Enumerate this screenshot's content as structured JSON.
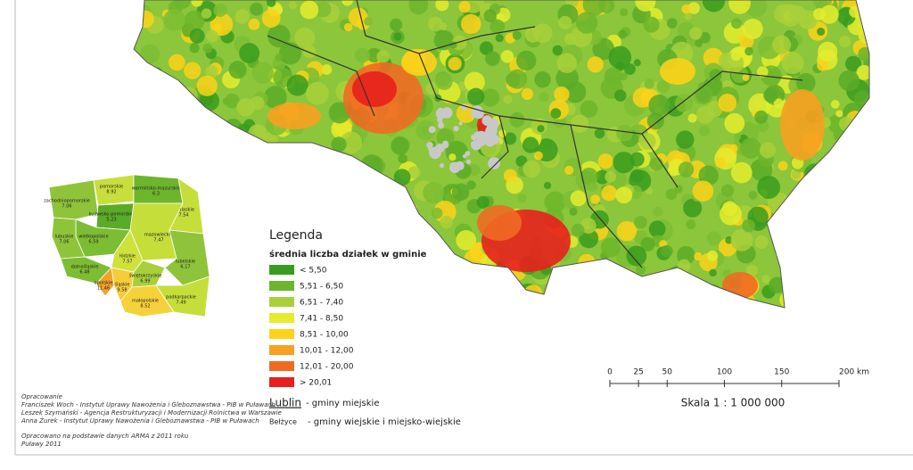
{
  "legend": {
    "title": "Legenda",
    "subtitle": "średnia liczba działek w gminie",
    "items": [
      {
        "label": "< 5,50",
        "color": "#3a9c1f"
      },
      {
        "label": "5,51 - 6,50",
        "color": "#6db52c"
      },
      {
        "label": "6,51 - 7,40",
        "color": "#a8d03a"
      },
      {
        "label": "7,41 - 8,50",
        "color": "#e4ec2e"
      },
      {
        "label": "8,51 - 10,00",
        "color": "#fcd21a"
      },
      {
        "label": "10,01 - 12,00",
        "color": "#f7a021"
      },
      {
        "label": "12,01 - 20,00",
        "color": "#f06a24"
      },
      {
        "label": "> 20,01",
        "color": "#e8201d"
      }
    ]
  },
  "inset": {
    "regions": [
      {
        "name": "zachodniopomorskie",
        "value": 7.06,
        "color": "#8fc43a"
      },
      {
        "name": "pomorskie",
        "value": 8.92,
        "color": "#c8de3c"
      },
      {
        "name": "warmińsko-mazurskie",
        "value": 6.3,
        "color": "#6db52c"
      },
      {
        "name": "podlaskie",
        "value": 7.54,
        "color": "#c5de3a"
      },
      {
        "name": "kujawsko-pomorskie",
        "value": 5.23,
        "color": "#5aab28"
      },
      {
        "name": "wielkopolskie",
        "value": 6.59,
        "color": "#7dbd33"
      },
      {
        "name": "lubuskie",
        "value": 7.06,
        "color": "#8fc43a"
      },
      {
        "name": "mazowieckie",
        "value": 7.47,
        "color": "#c5de3a"
      },
      {
        "name": "łódzkie",
        "value": 7.57,
        "color": "#cfe23c"
      },
      {
        "name": "dolnośląskie",
        "value": 6.48,
        "color": "#7dbd33"
      },
      {
        "name": "opolskie",
        "value": 11.46,
        "color": "#f4a12a"
      },
      {
        "name": "śląskie",
        "value": 9.58,
        "color": "#f6cc3a"
      },
      {
        "name": "świętokrzyskie",
        "value": 6.99,
        "color": "#a8d03a"
      },
      {
        "name": "lubelskie",
        "value": 6.17,
        "color": "#8fc43a"
      },
      {
        "name": "podkarpackie",
        "value": 7.49,
        "color": "#c5de3a"
      },
      {
        "name": "małopolskie",
        "value": 8.52,
        "color": "#f6d23a"
      }
    ]
  },
  "labels_legend": {
    "urban_example": "Lublin",
    "urban_text": "- gminy miejskie",
    "rural_example": "Bełżyce",
    "rural_text": "- gminy wiejskie i miejsko-wiejskie"
  },
  "scale": {
    "lim": [
      0,
      200
    ],
    "ticks": [
      0,
      25,
      50,
      100,
      150,
      {
        "value": 200,
        "label": "200 km"
      }
    ],
    "caption": "Skala 1 : 1 000 000"
  },
  "credits": {
    "heading": "Opracowanie",
    "lines": [
      "Franciszek Woch - Instytut Uprawy Nawożenia i Gleboznawstwa - PIB w Puławach",
      "Leszek Szymański - Agencja Restrukturyzacji i Modernizacji Rolnictwa w Warszawie",
      "Anna Żurek - Instytut Uprawy Nawożenia i Gleboznawstwa - PIB w Puławach"
    ],
    "source": "Opracowano na podstawie danych ARMA z 2011 roku",
    "place": "Puławy 2011"
  }
}
